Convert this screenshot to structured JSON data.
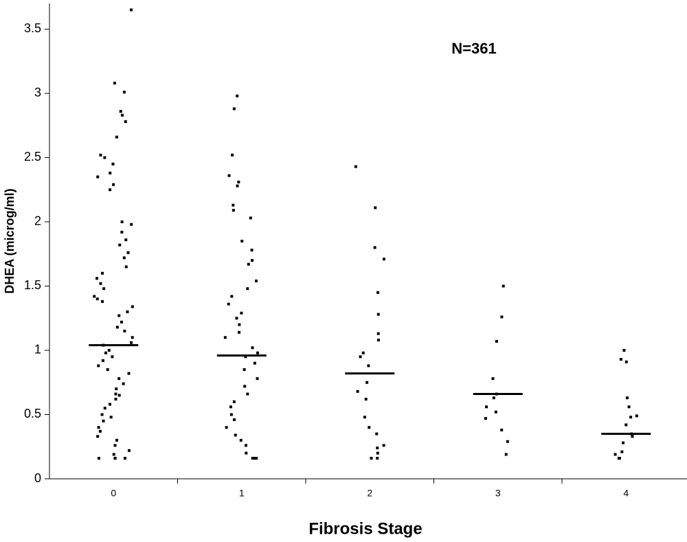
{
  "chart_data": {
    "type": "strip",
    "annotation": "N=361",
    "y_label": "DHEA (microg/ml)",
    "x_label": "Fibrosis Stage",
    "ylim": [
      0,
      3.7
    ],
    "yticks": [
      0,
      0.5,
      1,
      1.5,
      2,
      2.5,
      3,
      3.5
    ],
    "color": "#000000",
    "groups": [
      {
        "category": "0",
        "median": 1.04,
        "values": [
          3.65,
          3.08,
          3.01,
          2.86,
          2.83,
          2.78,
          2.66,
          2.52,
          2.5,
          2.45,
          2.38,
          2.35,
          2.29,
          2.25,
          2.0,
          1.98,
          1.92,
          1.86,
          1.82,
          1.76,
          1.72,
          1.65,
          1.6,
          1.56,
          1.52,
          1.48,
          1.42,
          1.4,
          1.38,
          1.34,
          1.3,
          1.27,
          1.22,
          1.18,
          1.15,
          1.1,
          1.06,
          1.04,
          1.0,
          0.98,
          0.95,
          0.92,
          0.88,
          0.85,
          0.82,
          0.78,
          0.74,
          0.7,
          0.66,
          0.65,
          0.62,
          0.58,
          0.55,
          0.5,
          0.48,
          0.45,
          0.4,
          0.37,
          0.33,
          0.3,
          0.26,
          0.22,
          0.19,
          0.16,
          0.16,
          0.16,
          0.16
        ]
      },
      {
        "category": "1",
        "median": 0.96,
        "values": [
          2.98,
          2.88,
          2.52,
          2.36,
          2.31,
          2.28,
          2.13,
          2.09,
          2.03,
          1.85,
          1.78,
          1.7,
          1.67,
          1.54,
          1.48,
          1.42,
          1.36,
          1.29,
          1.25,
          1.2,
          1.14,
          1.1,
          1.02,
          0.98,
          0.95,
          0.9,
          0.85,
          0.78,
          0.72,
          0.66,
          0.6,
          0.56,
          0.5,
          0.46,
          0.4,
          0.34,
          0.3,
          0.26,
          0.2,
          0.16,
          0.16,
          0.16
        ]
      },
      {
        "category": "2",
        "median": 0.82,
        "values": [
          2.43,
          2.11,
          1.8,
          1.71,
          1.45,
          1.28,
          1.13,
          1.08,
          0.98,
          0.95,
          0.88,
          0.75,
          0.68,
          0.62,
          0.48,
          0.4,
          0.35,
          0.26,
          0.24,
          0.2,
          0.16,
          0.16
        ]
      },
      {
        "category": "3",
        "median": 0.66,
        "values": [
          1.5,
          1.26,
          1.07,
          0.78,
          0.66,
          0.63,
          0.56,
          0.52,
          0.47,
          0.38,
          0.29,
          0.19
        ]
      },
      {
        "category": "4",
        "median": 0.35,
        "values": [
          1.0,
          0.93,
          0.91,
          0.63,
          0.56,
          0.49,
          0.48,
          0.42,
          0.35,
          0.33,
          0.28,
          0.21,
          0.19,
          0.16,
          0.16
        ]
      }
    ]
  }
}
